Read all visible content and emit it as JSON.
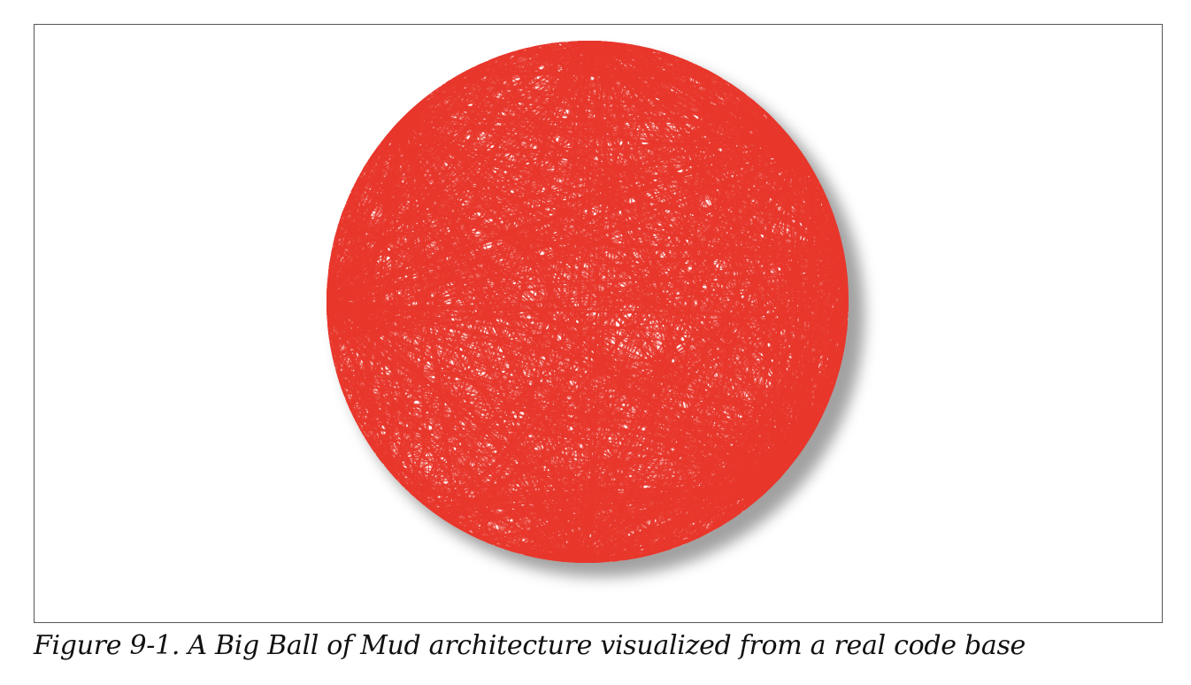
{
  "figure": {
    "caption": "Figure 9-1. A Big Ball of Mud architecture visualized from a real code base",
    "line_color": "#e8372c",
    "background": "#ffffff",
    "border_color": "#555555",
    "shadow_color": "#555555"
  }
}
